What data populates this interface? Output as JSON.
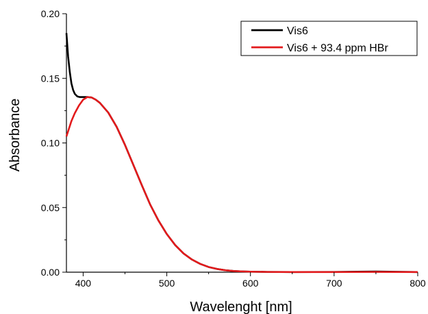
{
  "chart_data": {
    "type": "line",
    "xlabel": "Wavelenght [nm]",
    "ylabel": "Absorbance",
    "xlim": [
      380,
      800
    ],
    "ylim": [
      0,
      0.2
    ],
    "x_ticks": [
      400,
      500,
      600,
      700,
      800
    ],
    "y_ticks": [
      0,
      0.05,
      0.1,
      0.15,
      0.2
    ],
    "x_tick_labels": [
      "400",
      "500",
      "600",
      "700",
      "800"
    ],
    "y_tick_labels": [
      "0.00",
      "0.05",
      "0.10",
      "0.15",
      "0.20"
    ],
    "grid": false,
    "legend_position": "top-right",
    "series": [
      {
        "name": "Vis6",
        "color": "#000000",
        "x": [
          380,
          382,
          384,
          386,
          388,
          390,
          393,
          396,
          400,
          405,
          410,
          415,
          420,
          430,
          440,
          450,
          460,
          470,
          480,
          490,
          500,
          510,
          520,
          530,
          540,
          550,
          560,
          570,
          580,
          590,
          600,
          620,
          650,
          700,
          750,
          800
        ],
        "y": [
          0.185,
          0.167,
          0.155,
          0.146,
          0.141,
          0.138,
          0.136,
          0.1355,
          0.1355,
          0.1355,
          0.1352,
          0.1335,
          0.131,
          0.1235,
          0.1125,
          0.0985,
          0.083,
          0.0675,
          0.0525,
          0.04,
          0.0295,
          0.021,
          0.0145,
          0.0098,
          0.0064,
          0.004,
          0.0025,
          0.0015,
          0.0009,
          0.0006,
          0.0004,
          0.0002,
          0.0001,
          0.0002,
          0.0005,
          0.0001
        ]
      },
      {
        "name": "Vis6 + 93.4 ppm HBr",
        "color": "#e31a1c",
        "x": [
          380,
          383,
          386,
          390,
          395,
          400,
          405,
          410,
          415,
          420,
          430,
          440,
          450,
          460,
          470,
          480,
          490,
          500,
          510,
          520,
          530,
          540,
          550,
          560,
          570,
          580,
          590,
          600,
          620,
          650,
          700,
          750,
          800
        ],
        "y": [
          0.105,
          0.111,
          0.117,
          0.123,
          0.129,
          0.1335,
          0.1355,
          0.1352,
          0.1335,
          0.131,
          0.1235,
          0.1125,
          0.0985,
          0.083,
          0.0675,
          0.0525,
          0.04,
          0.0295,
          0.021,
          0.0145,
          0.0098,
          0.0064,
          0.004,
          0.0025,
          0.0015,
          0.0009,
          0.0006,
          0.0004,
          0.0002,
          0.0001,
          0.0001,
          0.0002,
          0.0001
        ]
      }
    ]
  }
}
